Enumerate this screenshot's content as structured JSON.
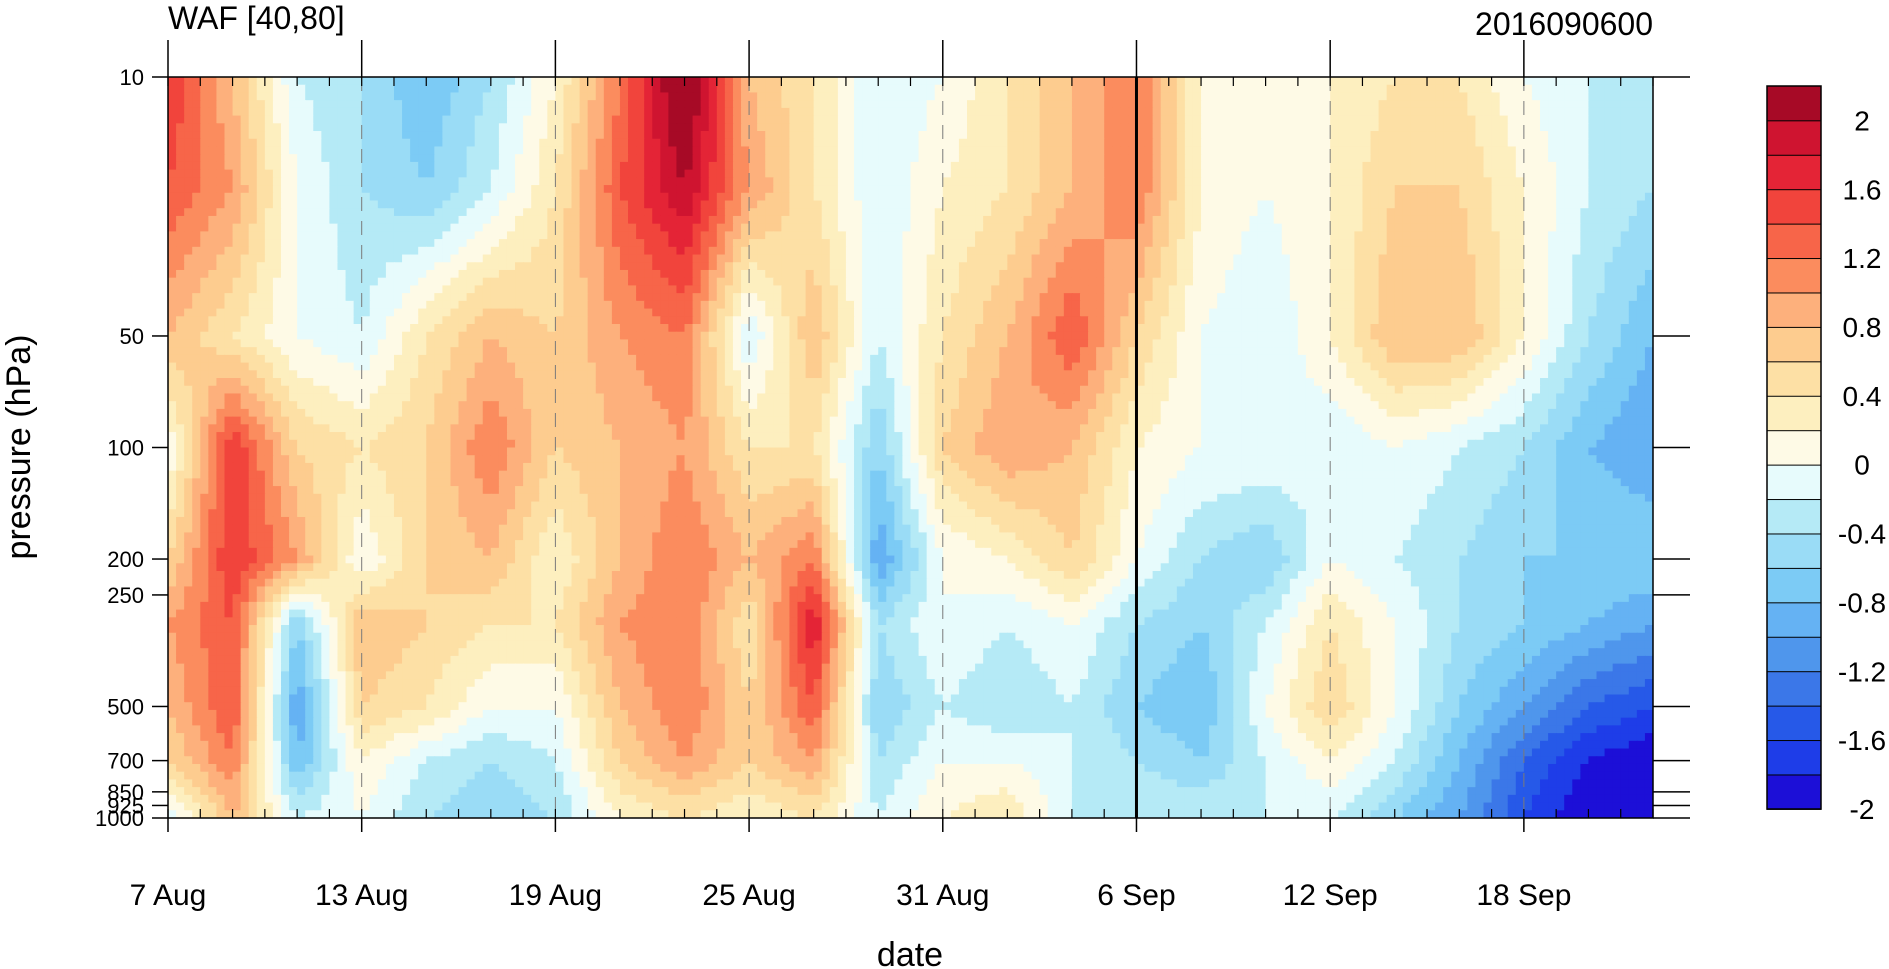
{
  "chart_data": {
    "type": "heatmap",
    "title": "WAF [40,80]",
    "subtitle": "2016090600",
    "xlabel": "date",
    "ylabel": "pressure (hPa)",
    "x_axis": {
      "range": [
        "2016-08-07",
        "2016-09-22"
      ],
      "ticks": [
        "7 Aug",
        "13 Aug",
        "19 Aug",
        "25 Aug",
        "31 Aug",
        "6 Sep",
        "12 Sep",
        "18 Sep"
      ],
      "tick_dates": [
        "2016-08-07",
        "2016-08-13",
        "2016-08-19",
        "2016-08-25",
        "2016-08-31",
        "2016-09-06",
        "2016-09-12",
        "2016-09-18"
      ],
      "minor_tick_step_days": 1,
      "vertical_marker_date": "2016-09-06"
    },
    "y_axis": {
      "scale": "log",
      "inverted": true,
      "range": [
        10,
        1000
      ],
      "ticks": [
        10,
        50,
        100,
        200,
        250,
        500,
        700,
        850,
        925,
        1000
      ],
      "tick_labels": [
        "10",
        "50",
        "100",
        "200",
        "250",
        "500",
        "700",
        "850",
        "925",
        "1000"
      ]
    },
    "colorbar": {
      "placement": "right",
      "labels": [
        "2",
        "1.6",
        "1.2",
        "0.8",
        "0.4",
        "0",
        "-0.4",
        "-0.8",
        "-1.2",
        "-1.6",
        "-2"
      ],
      "levels": [
        -2.2,
        -2.0,
        -1.8,
        -1.6,
        -1.4,
        -1.2,
        -1.0,
        -0.8,
        -0.6,
        -0.4,
        -0.2,
        0.0,
        0.2,
        0.4,
        0.6,
        0.8,
        1.0,
        1.2,
        1.4,
        1.6,
        1.8,
        2.0,
        2.2
      ],
      "colors": [
        "#1c0fd7",
        "#1e3de8",
        "#2659e8",
        "#3b77e8",
        "#4f96ec",
        "#65b2f3",
        "#7ccbf5",
        "#9adcf6",
        "#b5eaf6",
        "#e7fbfc",
        "#fefae6",
        "#fdefbf",
        "#fde0a5",
        "#fdcc8f",
        "#fdb07c",
        "#fb8c5e",
        "#f76549",
        "#f1443c",
        "#e42436",
        "#cf1430",
        "#a70a26"
      ]
    },
    "grid": {
      "dates": [
        "2016-08-07",
        "2016-08-09",
        "2016-08-11",
        "2016-08-13",
        "2016-08-15",
        "2016-08-17",
        "2016-08-19",
        "2016-08-21",
        "2016-08-23",
        "2016-08-25",
        "2016-08-27",
        "2016-08-29",
        "2016-08-31",
        "2016-09-02",
        "2016-09-04",
        "2016-09-06",
        "2016-09-08",
        "2016-09-10",
        "2016-09-12",
        "2016-09-14",
        "2016-09-16",
        "2016-09-18",
        "2016-09-20",
        "2016-09-22"
      ],
      "pressure": [
        10,
        20,
        50,
        100,
        200,
        300,
        500,
        700,
        1000
      ],
      "values": [
        [
          1.4,
          0.6,
          -0.4,
          -0.6,
          -1.0,
          -0.6,
          0.0,
          1.0,
          2.2,
          0.6,
          0.2,
          -0.4,
          -0.2,
          0.2,
          0.6,
          1.0,
          0.0,
          -0.2,
          0.0,
          0.2,
          0.2,
          -0.2,
          -0.4,
          -0.6
        ],
        [
          1.2,
          0.8,
          -0.2,
          -0.6,
          -0.8,
          -0.4,
          0.2,
          1.2,
          1.8,
          0.8,
          0.2,
          -0.4,
          0.0,
          0.2,
          0.6,
          1.0,
          0.0,
          -0.2,
          0.0,
          0.4,
          0.4,
          0.0,
          -0.4,
          -0.6
        ],
        [
          0.6,
          0.2,
          -0.2,
          -0.4,
          0.2,
          0.6,
          0.4,
          0.8,
          1.0,
          -0.4,
          0.6,
          -0.4,
          0.2,
          0.6,
          1.2,
          0.4,
          -0.2,
          -0.4,
          0.0,
          0.6,
          0.6,
          0.0,
          -0.6,
          -1.0
        ],
        [
          -0.2,
          1.4,
          0.4,
          0.2,
          0.4,
          1.0,
          0.4,
          0.6,
          0.8,
          0.2,
          0.2,
          -0.8,
          0.4,
          0.8,
          0.6,
          0.0,
          -0.2,
          -0.2,
          -0.4,
          -0.2,
          -0.4,
          -0.6,
          -1.0,
          -1.2
        ],
        [
          0.4,
          1.4,
          0.8,
          -0.2,
          0.4,
          0.6,
          0.0,
          0.6,
          1.0,
          0.6,
          1.0,
          -1.2,
          -0.2,
          0.0,
          0.4,
          -0.2,
          -0.6,
          -0.8,
          -0.2,
          -0.4,
          -0.6,
          -0.8,
          -0.8,
          -0.8
        ],
        [
          0.8,
          1.2,
          -0.8,
          0.6,
          0.4,
          0.2,
          0.2,
          0.8,
          1.0,
          0.2,
          1.6,
          -0.6,
          -0.2,
          -0.4,
          -0.2,
          -0.6,
          -0.8,
          -0.4,
          0.2,
          -0.2,
          -0.6,
          -0.8,
          -1.0,
          -1.2
        ],
        [
          0.6,
          1.2,
          -1.2,
          0.4,
          0.2,
          -0.2,
          -0.2,
          0.6,
          1.0,
          0.4,
          1.2,
          -0.8,
          -0.4,
          -0.6,
          -0.4,
          -0.8,
          -1.0,
          -0.2,
          0.4,
          -0.2,
          -0.8,
          -1.2,
          -1.6,
          -1.8
        ],
        [
          0.4,
          1.0,
          -1.0,
          0.0,
          -0.4,
          -0.6,
          -0.4,
          0.4,
          0.8,
          0.4,
          0.8,
          -0.6,
          -0.2,
          -0.2,
          -0.4,
          -0.6,
          -0.8,
          -0.4,
          0.0,
          -0.4,
          -1.0,
          -1.6,
          -2.0,
          -2.2
        ],
        [
          -0.4,
          0.6,
          -0.4,
          -0.2,
          -0.6,
          -0.8,
          -0.6,
          0.0,
          0.2,
          0.0,
          0.2,
          -0.4,
          0.0,
          0.2,
          -0.4,
          -0.4,
          -0.4,
          -0.4,
          -0.4,
          -0.8,
          -1.2,
          -1.8,
          -2.2,
          -2.2
        ]
      ]
    }
  }
}
